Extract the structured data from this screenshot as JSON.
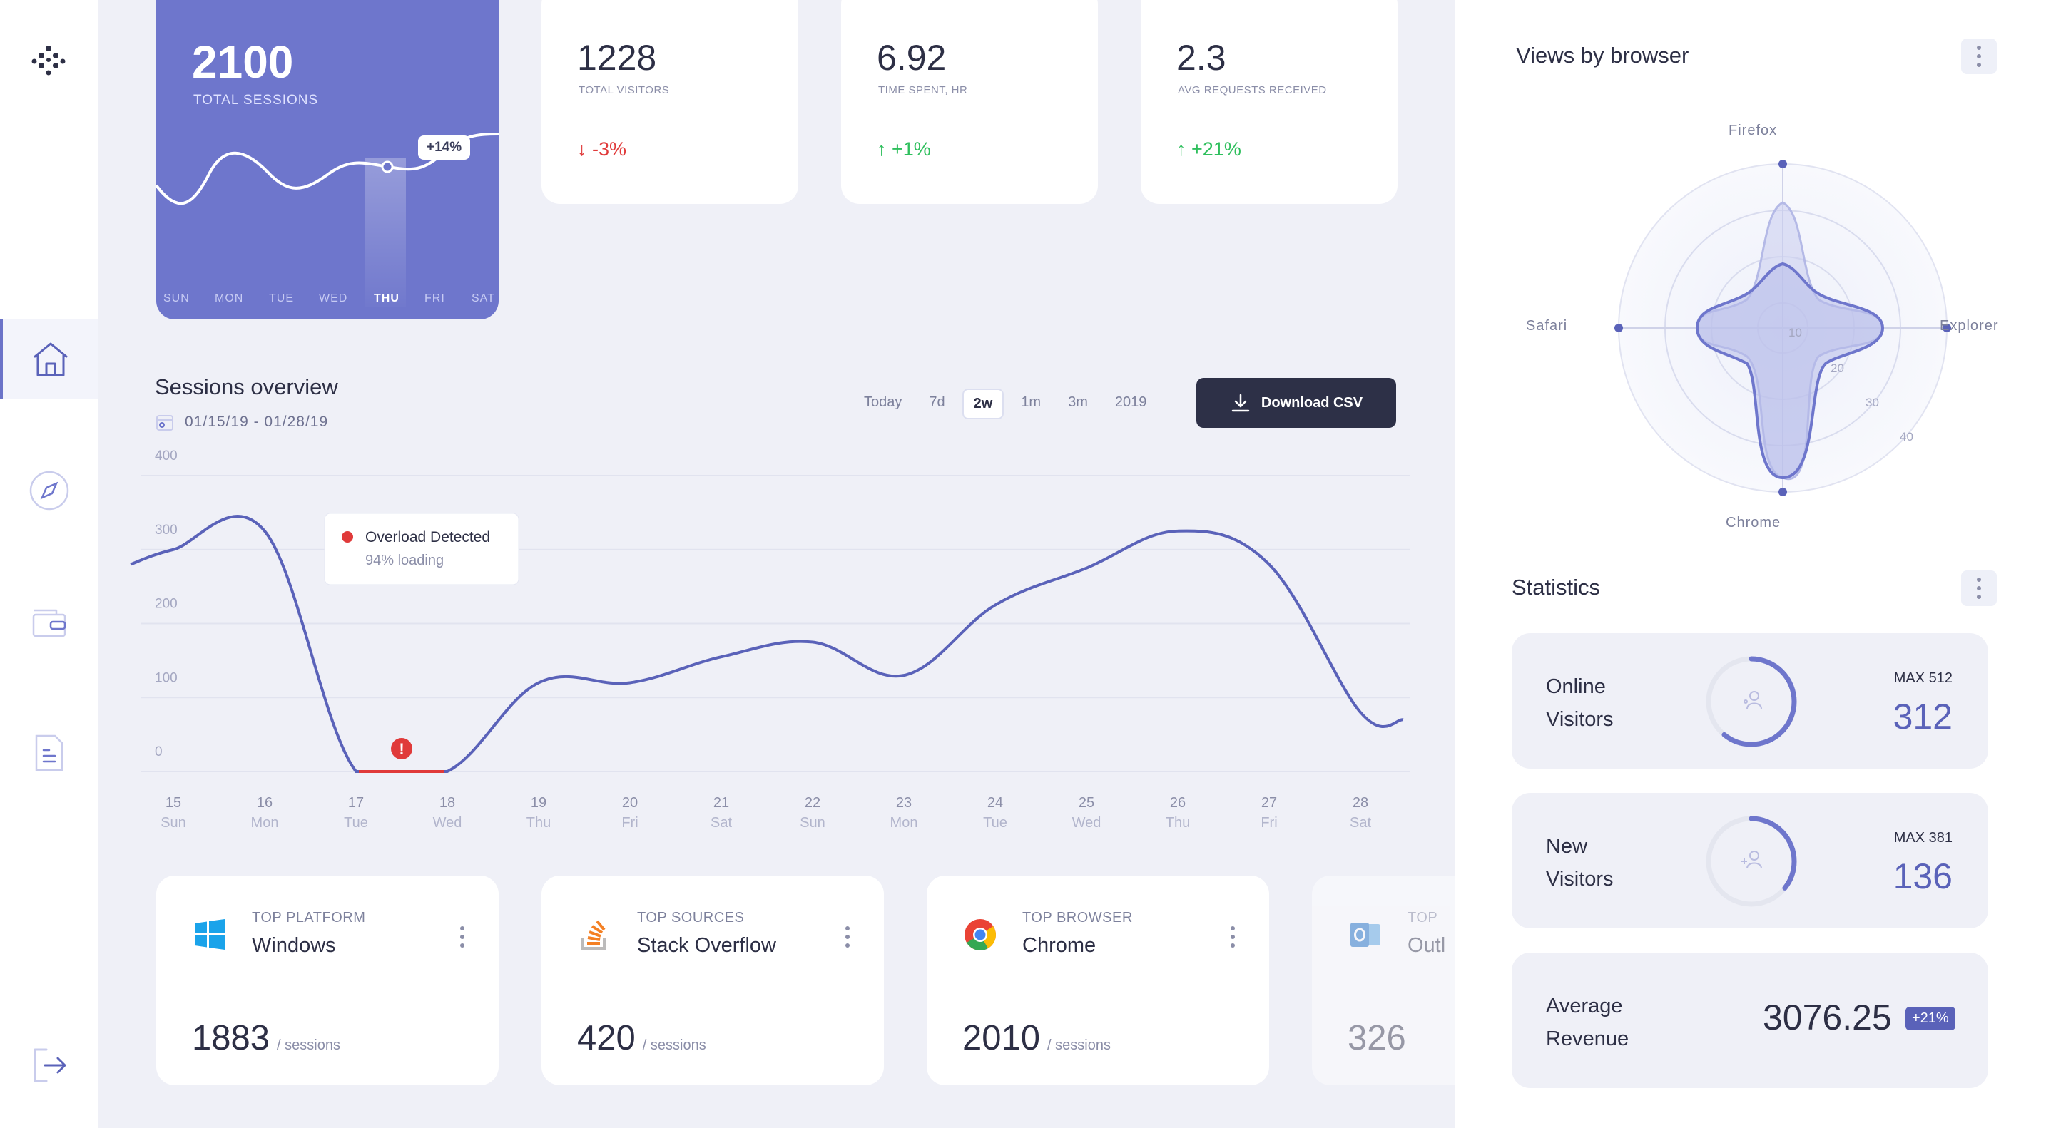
{
  "icons": {
    "logo": "dots-logo-icon",
    "nav": [
      "home-icon",
      "compass-icon",
      "wallet-icon",
      "document-icon"
    ],
    "logout": "logout-icon"
  },
  "hero": {
    "value": "2100",
    "label": "TOTAL SESSIONS",
    "badge": "+14%",
    "days": [
      "SUN",
      "MON",
      "TUE",
      "WED",
      "THU",
      "FRI",
      "SAT"
    ],
    "selected_day": "THU"
  },
  "stats": [
    {
      "value": "1228",
      "label": "TOTAL VISITORS",
      "change": "-3%",
      "direction": "down"
    },
    {
      "value": "6.92",
      "label": "TIME SPENT, HR",
      "change": "+1%",
      "direction": "up"
    },
    {
      "value": "2.3",
      "label": "AVG REQUESTS RECEIVED",
      "change": "+21%",
      "direction": "up"
    }
  ],
  "sessions": {
    "title": "Sessions overview",
    "date_range": "01/15/19 - 01/28/19",
    "ranges": [
      "Today",
      "7d",
      "2w",
      "1m",
      "3m",
      "2019"
    ],
    "selected_range": "2w",
    "download_label": "Download CSV",
    "tooltip_title": "Overload Detected",
    "tooltip_sub": "94% loading"
  },
  "chart_data": {
    "type": "line",
    "x": [
      "15",
      "16",
      "17",
      "18",
      "19",
      "20",
      "21",
      "22",
      "23",
      "24",
      "25",
      "26",
      "27",
      "28"
    ],
    "x_sub": [
      "Sun",
      "Mon",
      "Tue",
      "Wed",
      "Thu",
      "Fri",
      "Sat",
      "Sun",
      "Mon",
      "Tue",
      "Wed",
      "Thu",
      "Fri",
      "Sat"
    ],
    "values": [
      300,
      325,
      0,
      0,
      120,
      120,
      155,
      175,
      130,
      225,
      275,
      325,
      280,
      80
    ],
    "yticks": [
      0,
      100,
      200,
      300,
      400
    ],
    "ylim": [
      0,
      400
    ],
    "grid": true,
    "color": "#5a62b9"
  },
  "bottom_cards": [
    {
      "icon": "windows-icon",
      "category": "TOP PLATFORM",
      "name": "Windows",
      "value": "1883",
      "unit": "/ sessions"
    },
    {
      "icon": "stack-overflow-icon",
      "category": "TOP SOURCES",
      "name": "Stack Overflow",
      "value": "420",
      "unit": "/ sessions"
    },
    {
      "icon": "chrome-icon",
      "category": "TOP BROWSER",
      "name": "Chrome",
      "value": "2010",
      "unit": "/ sessions"
    },
    {
      "icon": "outlook-icon",
      "category": "TOP",
      "name": "Outl",
      "value": "326",
      "unit": ""
    }
  ],
  "browser": {
    "title": "Views by browser",
    "labels": [
      "Firefox",
      "Explorer",
      "Chrome",
      "Safari"
    ],
    "rings": [
      "10",
      "20",
      "30",
      "40"
    ]
  },
  "statistics": {
    "title": "Statistics",
    "online": {
      "label1": "Online",
      "label2": "Visitors",
      "max": "MAX 512",
      "value": "312",
      "fraction": 0.609
    },
    "new": {
      "label1": "New",
      "label2": "Visitors",
      "max": "MAX 381",
      "value": "136",
      "fraction": 0.357
    },
    "revenue": {
      "label1": "Average",
      "label2": "Revenue",
      "value": "3076.25",
      "badge": "+21%"
    }
  },
  "colors": {
    "accent": "#6e76cc",
    "dark": "#2d3047",
    "down": "#e03a3a",
    "up": "#2fbf5d"
  }
}
